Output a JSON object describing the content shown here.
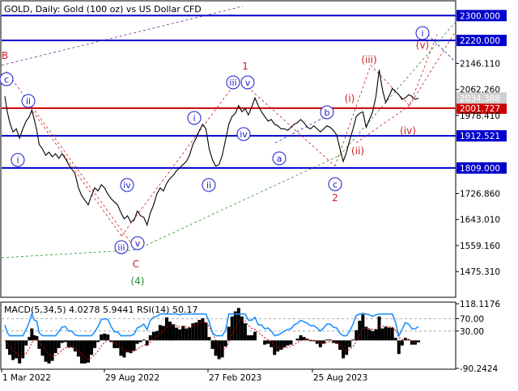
{
  "header": {
    "symbol": "GOLD, Daily:  Gold (100 oz) vs US Dollar CFD"
  },
  "colors": {
    "background": "#ffffff",
    "price_line": "#000000",
    "blue_level": "#0000cc",
    "red_level": "#cc0000",
    "wave_blue": "#1a1acc",
    "wave_red": "#c82020",
    "wave_green": "#2e8b2e",
    "wave_purple": "#6a2a8a",
    "macd_hist": "#000000",
    "macd_signal": "#cc0000",
    "rsi_line": "#1e90ff"
  },
  "chart_data": [
    {
      "type": "line",
      "title": "GOLD, Daily:  Gold (100 oz) vs US Dollar CFD",
      "xlabel": "",
      "ylabel": "",
      "ylim": [
        1395,
        2345
      ],
      "x_ticks": [
        "1 Mar 2022",
        "29 Aug 2022",
        "27 Feb 2023",
        "25 Aug 2023"
      ],
      "y_ticks": [
        "2300.000",
        "2220.000",
        "2146.110",
        "2062.260",
        "2001.727",
        "1978.410",
        "1912.521",
        "1809.000",
        "1726.860",
        "1643.010",
        "1559.160",
        "1475.310"
      ],
      "current_price": "2034.388",
      "series": [
        {
          "name": "",
          "points": [
            [
              0,
              2040
            ],
            [
              3,
              1990
            ],
            [
              6,
              1955
            ],
            [
              10,
              1925
            ],
            [
              14,
              1935
            ],
            [
              18,
              1905
            ],
            [
              22,
              1935
            ],
            [
              26,
              1960
            ],
            [
              30,
              1975
            ],
            [
              33,
              1995
            ],
            [
              36,
              1965
            ],
            [
              39,
              1930
            ],
            [
              42,
              1885
            ],
            [
              46,
              1870
            ],
            [
              50,
              1850
            ],
            [
              54,
              1860
            ],
            [
              58,
              1845
            ],
            [
              62,
              1855
            ],
            [
              66,
              1840
            ],
            [
              70,
              1855
            ],
            [
              74,
              1840
            ],
            [
              78,
              1820
            ],
            [
              82,
              1805
            ],
            [
              86,
              1790
            ],
            [
              90,
              1745
            ],
            [
              94,
              1720
            ],
            [
              98,
              1705
            ],
            [
              102,
              1690
            ],
            [
              106,
              1720
            ],
            [
              110,
              1745
            ],
            [
              114,
              1735
            ],
            [
              118,
              1755
            ],
            [
              122,
              1745
            ],
            [
              126,
              1725
            ],
            [
              130,
              1710
            ],
            [
              134,
              1700
            ],
            [
              138,
              1690
            ],
            [
              142,
              1665
            ],
            [
              146,
              1645
            ],
            [
              150,
              1655
            ],
            [
              154,
              1635
            ],
            [
              158,
              1640
            ],
            [
              162,
              1670
            ],
            [
              166,
              1655
            ],
            [
              170,
              1650
            ],
            [
              174,
              1625
            ],
            [
              178,
              1665
            ],
            [
              182,
              1690
            ],
            [
              186,
              1725
            ],
            [
              190,
              1745
            ],
            [
              194,
              1735
            ],
            [
              198,
              1760
            ],
            [
              202,
              1775
            ],
            [
              206,
              1785
            ],
            [
              210,
              1800
            ],
            [
              214,
              1810
            ],
            [
              218,
              1820
            ],
            [
              222,
              1830
            ],
            [
              226,
              1850
            ],
            [
              230,
              1885
            ],
            [
              234,
              1905
            ],
            [
              238,
              1930
            ],
            [
              242,
              1950
            ],
            [
              246,
              1935
            ],
            [
              250,
              1870
            ],
            [
              254,
              1835
            ],
            [
              258,
              1815
            ],
            [
              262,
              1820
            ],
            [
              266,
              1850
            ],
            [
              270,
              1900
            ],
            [
              274,
              1950
            ],
            [
              278,
              1975
            ],
            [
              282,
              1985
            ],
            [
              286,
              2010
            ],
            [
              290,
              1990
            ],
            [
              294,
              2000
            ],
            [
              298,
              1980
            ],
            [
              302,
              2005
            ],
            [
              306,
              2035
            ],
            [
              310,
              2010
            ],
            [
              314,
              1990
            ],
            [
              318,
              1975
            ],
            [
              322,
              1960
            ],
            [
              326,
              1965
            ],
            [
              330,
              1950
            ],
            [
              334,
              1945
            ],
            [
              338,
              1935
            ],
            [
              342,
              1935
            ],
            [
              346,
              1930
            ],
            [
              350,
              1940
            ],
            [
              354,
              1950
            ],
            [
              358,
              1955
            ],
            [
              362,
              1965
            ],
            [
              366,
              1955
            ],
            [
              370,
              1940
            ],
            [
              374,
              1935
            ],
            [
              378,
              1945
            ],
            [
              382,
              1935
            ],
            [
              386,
              1925
            ],
            [
              390,
              1935
            ],
            [
              394,
              1945
            ],
            [
              398,
              1940
            ],
            [
              402,
              1930
            ],
            [
              406,
              1915
            ],
            [
              410,
              1870
            ],
            [
              414,
              1830
            ],
            [
              418,
              1860
            ],
            [
              422,
              1900
            ],
            [
              426,
              1935
            ],
            [
              430,
              1975
            ],
            [
              434,
              1985
            ],
            [
              438,
              1990
            ],
            [
              442,
              1940
            ],
            [
              446,
              1965
            ],
            [
              450,
              1990
            ],
            [
              454,
              2040
            ],
            [
              458,
              2125
            ],
            [
              462,
              2060
            ],
            [
              466,
              2020
            ],
            [
              470,
              2040
            ],
            [
              474,
              2065
            ],
            [
              478,
              2055
            ],
            [
              482,
              2045
            ],
            [
              486,
              2030
            ],
            [
              490,
              2035
            ],
            [
              494,
              2045
            ],
            [
              498,
              2040
            ],
            [
              502,
              2030
            ],
            [
              506,
              2034
            ]
          ]
        }
      ],
      "horizontal_levels": [
        {
          "value": 2300.0,
          "label": "2300.000",
          "color": "blue"
        },
        {
          "value": 2220.0,
          "label": "2220.000",
          "color": "blue"
        },
        {
          "value": 2001.727,
          "label": "2001.727",
          "color": "red"
        },
        {
          "value": 1912.521,
          "label": "1912.521",
          "color": "blue"
        },
        {
          "value": 1809.0,
          "label": "1809.000",
          "color": "blue"
        }
      ],
      "wave_labels": [
        {
          "text": "B",
          "kind": "plain",
          "color": "red"
        },
        {
          "text": "c",
          "kind": "circle",
          "color": "blue"
        },
        {
          "text": "ii",
          "kind": "circle",
          "color": "blue"
        },
        {
          "text": "i",
          "kind": "circle",
          "color": "blue"
        },
        {
          "text": "iv",
          "kind": "circle",
          "color": "blue"
        },
        {
          "text": "iii",
          "kind": "circle",
          "color": "blue"
        },
        {
          "text": "v",
          "kind": "circle",
          "color": "blue"
        },
        {
          "text": "C",
          "kind": "plain",
          "color": "red"
        },
        {
          "text": "(4)",
          "kind": "plain",
          "color": "green"
        },
        {
          "text": "i",
          "kind": "circle",
          "color": "blue"
        },
        {
          "text": "ii",
          "kind": "circle",
          "color": "blue"
        },
        {
          "text": "1",
          "kind": "plain",
          "color": "red"
        },
        {
          "text": "iii",
          "kind": "circle",
          "color": "blue"
        },
        {
          "text": "v",
          "kind": "circle",
          "color": "blue"
        },
        {
          "text": "iv",
          "kind": "circle",
          "color": "blue"
        },
        {
          "text": "a",
          "kind": "circle",
          "color": "blue"
        },
        {
          "text": "b",
          "kind": "circle",
          "color": "blue"
        },
        {
          "text": "c",
          "kind": "circle",
          "color": "blue"
        },
        {
          "text": "2",
          "kind": "plain",
          "color": "red"
        },
        {
          "text": "(i)",
          "kind": "plain",
          "color": "red"
        },
        {
          "text": "(ii)",
          "kind": "plain",
          "color": "red"
        },
        {
          "text": "(iii)",
          "kind": "plain",
          "color": "red"
        },
        {
          "text": "(iv)",
          "kind": "plain",
          "color": "red"
        },
        {
          "text": "(v)",
          "kind": "plain",
          "color": "red"
        },
        {
          "text": "i",
          "kind": "circle",
          "color": "blue"
        }
      ]
    },
    {
      "type": "area",
      "title": "MACD(5,34,5) 4.0278 5.9441 RSI(14) 50.17",
      "xlabel": "",
      "ylabel": "",
      "ylim": [
        -90.2424,
        118.1176
      ],
      "y_ticks": [
        "118.1176",
        "70.00",
        "30.00",
        "-90.2424"
      ],
      "x_ticks": [
        "1 Mar 2022",
        "29 Aug 2022",
        "27 Feb 2023",
        "25 Aug 2023"
      ],
      "series": [
        {
          "name": "MACD(5,34,5)",
          "value": "4.0278"
        },
        {
          "name": "",
          "value": "5.9441"
        },
        {
          "name": "RSI(14)",
          "value": "50.17"
        }
      ]
    }
  ]
}
